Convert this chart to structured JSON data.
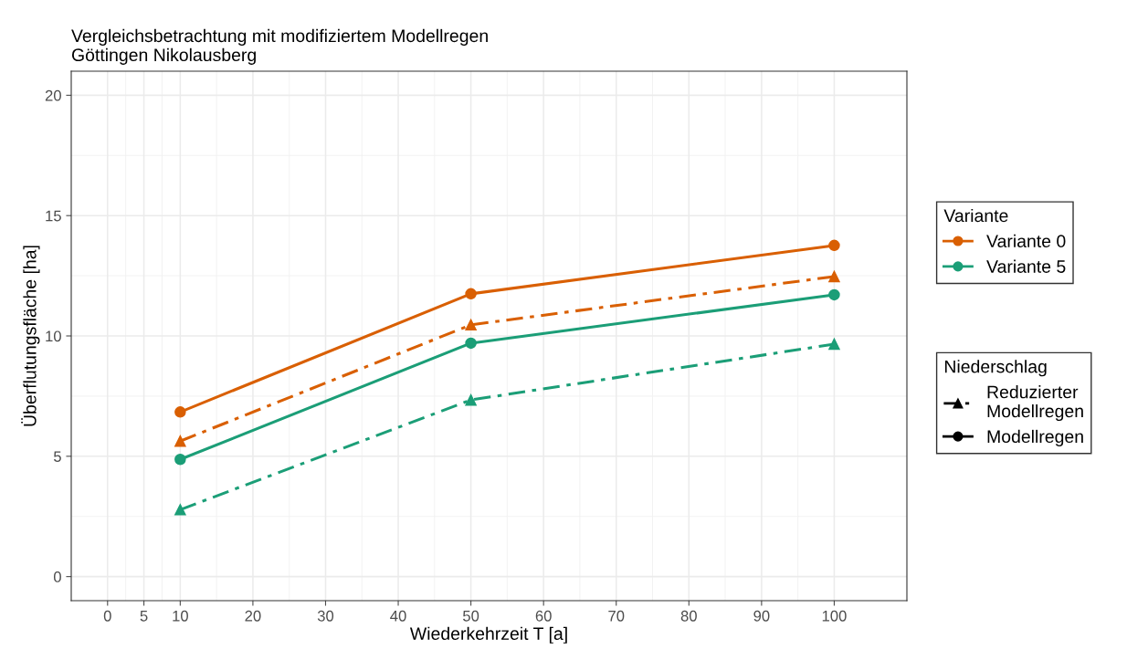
{
  "chart_data": {
    "type": "line",
    "title": "Vergleichsbetrachtung mit modifiziertem Modellregen\nGöttingen Nikolausberg",
    "xlabel": "Wiederkehrzeit T [a]",
    "ylabel": "Überflutungsfläche [ha]",
    "legend_title": [
      "Variante",
      "Niederschlag"
    ],
    "x": [
      10,
      50,
      100
    ],
    "xlim": [
      -5,
      110
    ],
    "xticks": [
      0,
      5,
      10,
      20,
      30,
      40,
      50,
      60,
      70,
      80,
      90,
      100
    ],
    "ylim": [
      -1,
      21
    ],
    "yticks": [
      0,
      5,
      10,
      15,
      20
    ],
    "grid": true,
    "legend": "right",
    "annotations": [
      "Reduzierter\nModellregen",
      "Modellregen"
    ],
    "series": [
      {
        "color": "#d95f02",
        "marker": "triangle",
        "line_style": "dashdot",
        "values": [
          5.63,
          10.46,
          12.47
        ]
      },
      {
        "name": "Variante 0",
        "color": "#d95f02",
        "marker": "circle",
        "line_style": "solid",
        "values": [
          6.84,
          11.75,
          13.76
        ]
      },
      {
        "color": "#1b9e77",
        "marker": "triangle",
        "line_style": "dashdot",
        "values": [
          2.78,
          7.34,
          9.66
        ]
      },
      {
        "name": "Variante 5",
        "color": "#1b9e77",
        "marker": "circle",
        "line_style": "solid",
        "values": [
          4.87,
          9.7,
          11.71
        ]
      }
    ]
  }
}
